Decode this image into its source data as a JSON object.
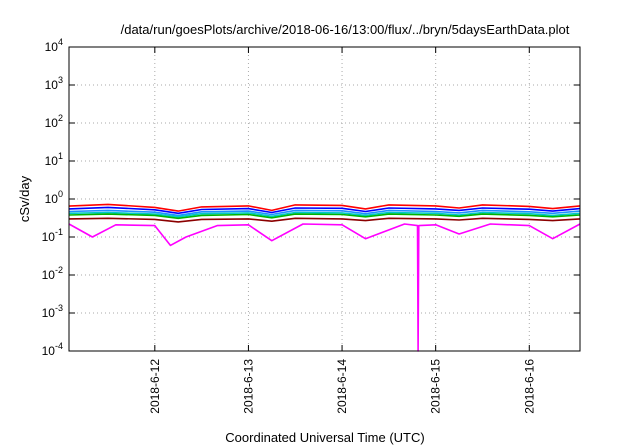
{
  "chart_data": {
    "type": "line",
    "title": "/data/run/goesPlots/archive/2018-06-16/13:00/flux/../bryn/5daysEarthData.plot",
    "xlabel": "Coordinated Universal Time (UTC)",
    "ylabel": "cSv/day",
    "y_scale": "log",
    "ylim": [
      0.0001,
      10000
    ],
    "xlim": [
      "2018-06-11T02:00",
      "2018-06-16T13:00"
    ],
    "grid": true,
    "legend": "none",
    "y_ticks": [
      {
        "base": "10",
        "exp": "-4",
        "value": 0.0001
      },
      {
        "base": "10",
        "exp": "-3",
        "value": 0.001
      },
      {
        "base": "10",
        "exp": "-2",
        "value": 0.01
      },
      {
        "base": "10",
        "exp": "-1",
        "value": 0.1
      },
      {
        "base": "10",
        "exp": "0",
        "value": 1
      },
      {
        "base": "10",
        "exp": "1",
        "value": 10
      },
      {
        "base": "10",
        "exp": "2",
        "value": 100
      },
      {
        "base": "10",
        "exp": "3",
        "value": 1000
      },
      {
        "base": "10",
        "exp": "4",
        "value": 10000
      }
    ],
    "x_ticks": [
      {
        "label": "2018-6-12",
        "value": "2018-06-12T00:00"
      },
      {
        "label": "2018-6-13",
        "value": "2018-06-13T00:00"
      },
      {
        "label": "2018-6-14",
        "value": "2018-06-14T00:00"
      },
      {
        "label": "2018-6-15",
        "value": "2018-06-15T00:00"
      },
      {
        "label": "2018-6-16",
        "value": "2018-06-16T00:00"
      }
    ],
    "series": [
      {
        "color": "#ff0000",
        "x": [
          "2018-06-11T02:00",
          "2018-06-11T12:00",
          "2018-06-12T00:00",
          "2018-06-12T06:00",
          "2018-06-12T12:00",
          "2018-06-13T00:00",
          "2018-06-13T06:00",
          "2018-06-13T12:00",
          "2018-06-14T00:00",
          "2018-06-14T06:00",
          "2018-06-14T12:00",
          "2018-06-15T00:00",
          "2018-06-15T06:00",
          "2018-06-15T12:00",
          "2018-06-16T00:00",
          "2018-06-16T06:00",
          "2018-06-16T13:00"
        ],
        "y": [
          0.65,
          0.72,
          0.6,
          0.48,
          0.62,
          0.66,
          0.5,
          0.7,
          0.68,
          0.55,
          0.7,
          0.66,
          0.58,
          0.7,
          0.64,
          0.56,
          0.66
        ]
      },
      {
        "color": "#0000ff",
        "x": [
          "2018-06-11T02:00",
          "2018-06-11T12:00",
          "2018-06-12T00:00",
          "2018-06-12T06:00",
          "2018-06-12T12:00",
          "2018-06-13T00:00",
          "2018-06-13T06:00",
          "2018-06-13T12:00",
          "2018-06-14T00:00",
          "2018-06-14T06:00",
          "2018-06-14T12:00",
          "2018-06-15T00:00",
          "2018-06-15T06:00",
          "2018-06-15T12:00",
          "2018-06-16T00:00",
          "2018-06-16T06:00",
          "2018-06-16T13:00"
        ],
        "y": [
          0.55,
          0.6,
          0.52,
          0.42,
          0.53,
          0.56,
          0.44,
          0.58,
          0.57,
          0.47,
          0.58,
          0.55,
          0.5,
          0.58,
          0.54,
          0.48,
          0.56
        ]
      },
      {
        "color": "#1e90ff",
        "x": [
          "2018-06-11T02:00",
          "2018-06-11T12:00",
          "2018-06-12T00:00",
          "2018-06-12T06:00",
          "2018-06-12T12:00",
          "2018-06-13T00:00",
          "2018-06-13T06:00",
          "2018-06-13T12:00",
          "2018-06-14T00:00",
          "2018-06-14T06:00",
          "2018-06-14T12:00",
          "2018-06-15T00:00",
          "2018-06-15T06:00",
          "2018-06-15T12:00",
          "2018-06-16T00:00",
          "2018-06-16T06:00",
          "2018-06-16T13:00"
        ],
        "y": [
          0.47,
          0.5,
          0.45,
          0.37,
          0.46,
          0.48,
          0.39,
          0.5,
          0.49,
          0.41,
          0.5,
          0.47,
          0.43,
          0.5,
          0.46,
          0.42,
          0.48
        ]
      },
      {
        "color": "#00c8c8",
        "x": [
          "2018-06-11T02:00",
          "2018-06-11T12:00",
          "2018-06-12T00:00",
          "2018-06-12T06:00",
          "2018-06-12T12:00",
          "2018-06-13T00:00",
          "2018-06-13T06:00",
          "2018-06-13T12:00",
          "2018-06-14T00:00",
          "2018-06-14T06:00",
          "2018-06-14T12:00",
          "2018-06-15T00:00",
          "2018-06-15T06:00",
          "2018-06-15T12:00",
          "2018-06-16T00:00",
          "2018-06-16T06:00",
          "2018-06-16T13:00"
        ],
        "y": [
          0.42,
          0.44,
          0.4,
          0.34,
          0.41,
          0.43,
          0.35,
          0.44,
          0.43,
          0.37,
          0.44,
          0.42,
          0.38,
          0.44,
          0.41,
          0.37,
          0.42
        ]
      },
      {
        "color": "#00b400",
        "x": [
          "2018-06-11T02:00",
          "2018-06-11T12:00",
          "2018-06-12T00:00",
          "2018-06-12T06:00",
          "2018-06-12T12:00",
          "2018-06-13T00:00",
          "2018-06-13T06:00",
          "2018-06-13T12:00",
          "2018-06-14T00:00",
          "2018-06-14T06:00",
          "2018-06-14T12:00",
          "2018-06-15T00:00",
          "2018-06-15T06:00",
          "2018-06-15T12:00",
          "2018-06-16T00:00",
          "2018-06-16T06:00",
          "2018-06-16T13:00"
        ],
        "y": [
          0.38,
          0.4,
          0.37,
          0.31,
          0.37,
          0.39,
          0.32,
          0.4,
          0.39,
          0.34,
          0.4,
          0.38,
          0.35,
          0.4,
          0.37,
          0.34,
          0.38
        ]
      },
      {
        "color": "#8b0000",
        "x": [
          "2018-06-11T02:00",
          "2018-06-11T12:00",
          "2018-06-12T00:00",
          "2018-06-12T06:00",
          "2018-06-12T12:00",
          "2018-06-13T00:00",
          "2018-06-13T06:00",
          "2018-06-13T12:00",
          "2018-06-14T00:00",
          "2018-06-14T06:00",
          "2018-06-14T12:00",
          "2018-06-15T00:00",
          "2018-06-15T06:00",
          "2018-06-15T12:00",
          "2018-06-16T00:00",
          "2018-06-16T06:00",
          "2018-06-16T13:00"
        ],
        "y": [
          0.3,
          0.31,
          0.29,
          0.25,
          0.29,
          0.3,
          0.26,
          0.31,
          0.3,
          0.27,
          0.31,
          0.3,
          0.28,
          0.31,
          0.29,
          0.27,
          0.3
        ]
      },
      {
        "color": "#ff00ff",
        "x": [
          "2018-06-11T02:00",
          "2018-06-11T08:00",
          "2018-06-11T14:00",
          "2018-06-12T00:00",
          "2018-06-12T04:00",
          "2018-06-12T08:00",
          "2018-06-12T16:00",
          "2018-06-13T00:00",
          "2018-06-13T06:00",
          "2018-06-13T14:00",
          "2018-06-14T00:00",
          "2018-06-14T06:00",
          "2018-06-14T16:00",
          "2018-06-14T19:20",
          "2018-06-14T19:30",
          "2018-06-14T19:40",
          "2018-06-15T00:00",
          "2018-06-15T06:00",
          "2018-06-15T14:00",
          "2018-06-16T00:00",
          "2018-06-16T06:00",
          "2018-06-16T13:00"
        ],
        "y": [
          0.22,
          0.1,
          0.21,
          0.2,
          0.06,
          0.1,
          0.2,
          0.21,
          0.08,
          0.22,
          0.21,
          0.09,
          0.22,
          0.2,
          0.0001,
          0.2,
          0.21,
          0.12,
          0.22,
          0.2,
          0.09,
          0.22
        ]
      }
    ]
  }
}
